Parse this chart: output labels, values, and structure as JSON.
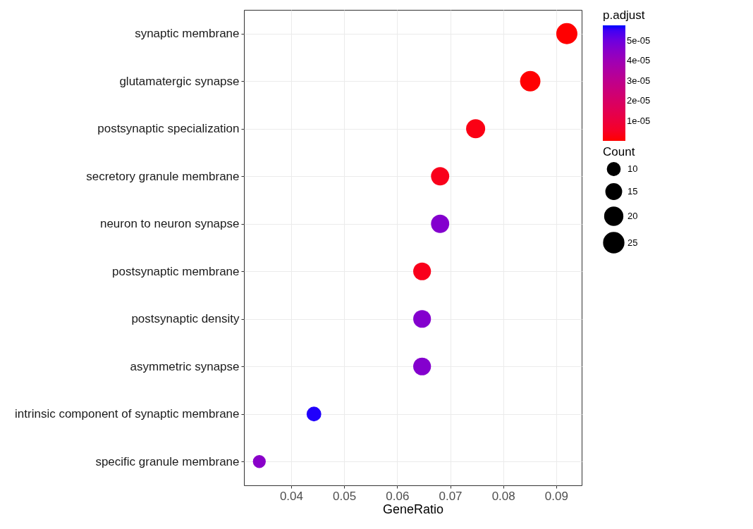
{
  "chart_data": {
    "type": "bubble",
    "xlabel": "GeneRatio",
    "clabel": "p.adjust",
    "legend_title": "Count",
    "categories": [
      "synaptic membrane",
      "glutamatergic synapse",
      "postsynaptic specialization",
      "secretory granule membrane",
      "neuron to neuron synapse",
      "postsynaptic membrane",
      "postsynaptic density",
      "asymmetric synapse",
      "intrinsic component of synaptic membrane",
      "specific granule membrane"
    ],
    "orientation": "horizontal",
    "values": [
      0.092,
      0.0851,
      0.0748,
      0.0681,
      0.0681,
      0.0647,
      0.0647,
      0.0647,
      0.0443,
      0.034
    ],
    "sizes": [
      27,
      25,
      22,
      20,
      20,
      19,
      19,
      19,
      13,
      10
    ],
    "size_legend": [
      10,
      15,
      20,
      25
    ],
    "cvalues": [
      1e-07,
      2e-07,
      2e-06,
      3e-06,
      4.6e-05,
      3e-06,
      4.6e-05,
      4.6e-05,
      5.7e-05,
      4.5e-05
    ],
    "clim": [
      0,
      5.77e-05
    ],
    "cticks": [
      {
        "value": 1e-05,
        "label": "1e-05"
      },
      {
        "value": 2e-05,
        "label": "2e-05"
      },
      {
        "value": 3e-05,
        "label": "3e-05"
      },
      {
        "value": 4e-05,
        "label": "4e-05"
      },
      {
        "value": 5e-05,
        "label": "5e-05"
      }
    ],
    "xlim": [
      0.0311,
      0.0948
    ],
    "xticks": [
      {
        "value": 0.04,
        "label": "0.04"
      },
      {
        "value": 0.05,
        "label": "0.05"
      },
      {
        "value": 0.06,
        "label": "0.06"
      },
      {
        "value": 0.07,
        "label": "0.07"
      },
      {
        "value": 0.08,
        "label": "0.08"
      },
      {
        "value": 0.09,
        "label": "0.09"
      }
    ],
    "grid": true
  }
}
